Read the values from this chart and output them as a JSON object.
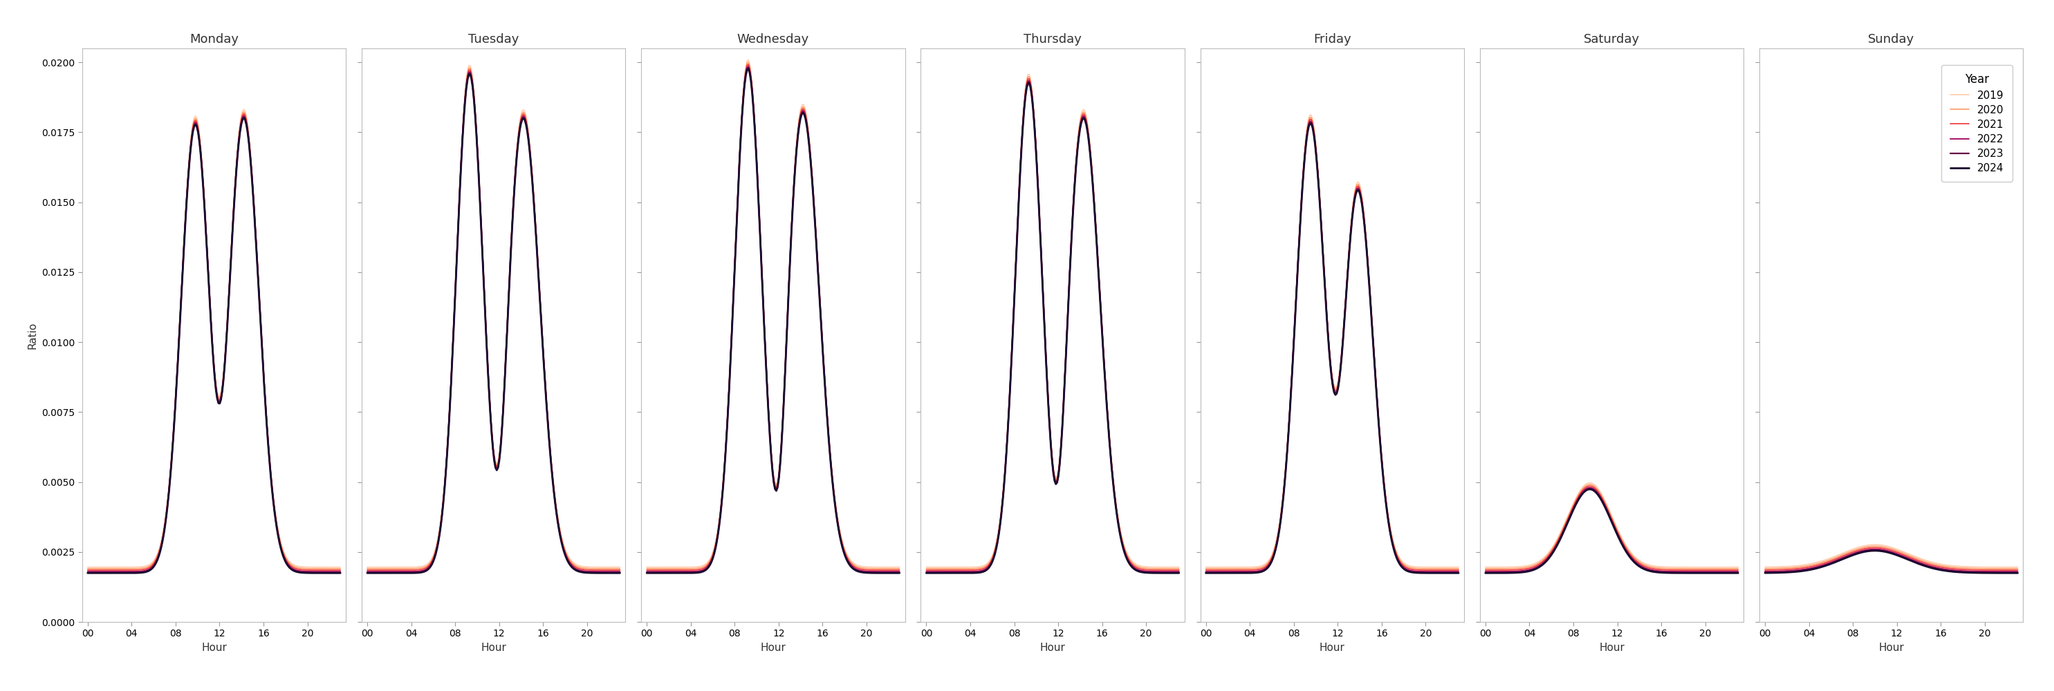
{
  "days": [
    "Monday",
    "Tuesday",
    "Wednesday",
    "Thursday",
    "Friday",
    "Saturday",
    "Sunday"
  ],
  "years": [
    2019,
    2020,
    2021,
    2022,
    2023,
    2024
  ],
  "colors": {
    "2019": "#FFCCAA",
    "2020": "#FF9966",
    "2021": "#EE3333",
    "2022": "#AA1166",
    "2023": "#660044",
    "2024": "#1A0A2E"
  },
  "linewidths": {
    "2019": 1.2,
    "2020": 1.2,
    "2021": 1.2,
    "2022": 1.4,
    "2023": 1.6,
    "2024": 2.0
  },
  "ylim": [
    0.0,
    0.0205
  ],
  "yticks": [
    0.0,
    0.0025,
    0.005,
    0.0075,
    0.01,
    0.0125,
    0.015,
    0.0175,
    0.02
  ],
  "xticks": [
    0,
    4,
    8,
    12,
    16,
    20
  ],
  "xlabel": "Hour",
  "ylabel": "Ratio",
  "legend_title": "Year",
  "profiles": {
    "Monday": {
      "mp": 0.016,
      "mh": 9.8,
      "ms": 1.3,
      "ap": 0.0163,
      "ah": 14.2,
      "as_": 1.4,
      "dip": 0.0025,
      "dh": 12.0,
      "ds": 0.8
    },
    "Tuesday": {
      "mp": 0.0178,
      "mh": 9.3,
      "ms": 1.2,
      "ap": 0.0163,
      "ah": 14.2,
      "as_": 1.5,
      "dip": 0.003,
      "dh": 12.0,
      "ds": 0.7
    },
    "Wednesday": {
      "mp": 0.018,
      "mh": 9.2,
      "ms": 1.2,
      "ap": 0.0165,
      "ah": 14.2,
      "as_": 1.5,
      "dip": 0.0035,
      "dh": 12.0,
      "ds": 0.7
    },
    "Thursday": {
      "mp": 0.0175,
      "mh": 9.3,
      "ms": 1.2,
      "ap": 0.0163,
      "ah": 14.3,
      "as_": 1.5,
      "dip": 0.003,
      "dh": 12.0,
      "ds": 0.7
    },
    "Friday": {
      "mp": 0.016,
      "mh": 9.5,
      "ms": 1.3,
      "ap": 0.0138,
      "ah": 13.8,
      "as_": 1.4,
      "dip": 0.002,
      "dh": 12.0,
      "ds": 0.8
    },
    "Saturday": {
      "mp": 0.003,
      "mh": 9.5,
      "ms": 2.0,
      "ap": 0.0,
      "ah": 0.0,
      "as_": 1.0,
      "dip": 0.0,
      "dh": 0.0,
      "ds": 1.0
    },
    "Sunday": {
      "mp": 0.0008,
      "mh": 10.0,
      "ms": 3.0,
      "ap": 0.0,
      "ah": 0.0,
      "as_": 1.0,
      "dip": 0.0,
      "dh": 0.0,
      "ds": 1.0
    }
  },
  "base": 0.0018,
  "year_scales": [
    1.004,
    1.002,
    1.001,
    1.0,
    0.999,
    0.998
  ],
  "year_offsets": [
    0.00015,
    0.0001,
    5e-05,
    0.0,
    -3e-05,
    -5e-05
  ]
}
